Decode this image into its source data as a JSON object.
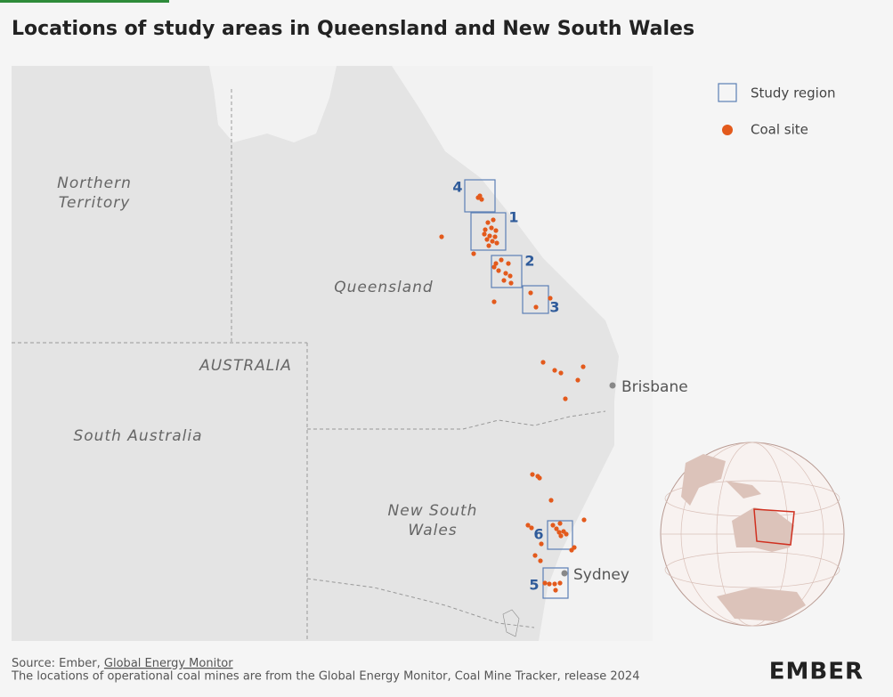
{
  "title": "Locations of study areas in Queensland and New South Wales",
  "legend": {
    "study_region": "Study region",
    "coal_site": "Coal site"
  },
  "regions": {
    "northern_territory": [
      "Northern",
      "Territory"
    ],
    "queensland": "Queensland",
    "australia": "AUSTRALIA",
    "south_australia": "South Australia",
    "new_south_wales": [
      "New South",
      "Wales"
    ]
  },
  "study_areas": [
    "1",
    "2",
    "3",
    "4",
    "5",
    "6"
  ],
  "cities": {
    "brisbane": "Brisbane",
    "sydney": "Sydney"
  },
  "footer": {
    "source_prefix": "Source: Ember,",
    "source_link": "Global Energy Monitor",
    "note": "The locations of operational coal mines are from the Global Energy Monitor, Coal Mine Tracker, release 2024",
    "logo": "EMBER"
  }
}
